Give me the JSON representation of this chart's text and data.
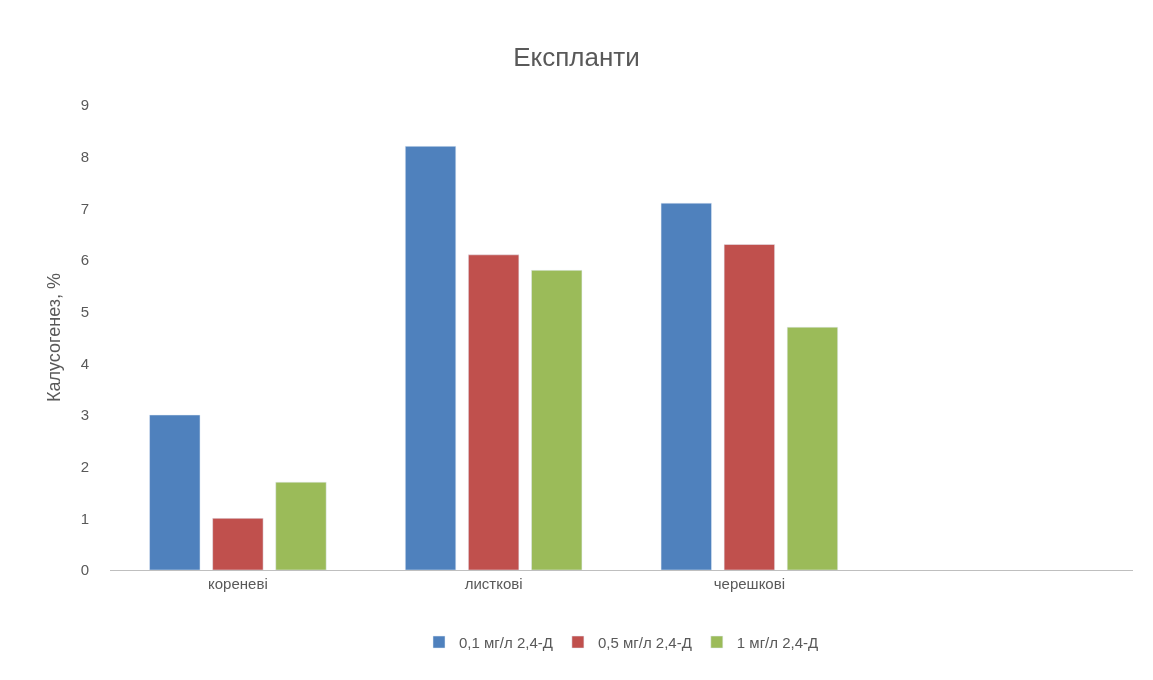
{
  "chart_data": {
    "type": "bar",
    "title": "Експланти",
    "ylabel": "Калусогенез, %",
    "categories": [
      "кореневі",
      "листкові",
      "черешкові",
      null
    ],
    "series": [
      {
        "name": "0,1 мг/л 2,4-Д",
        "color": "#4f81bd",
        "values": [
          3.0,
          8.2,
          7.1,
          null
        ]
      },
      {
        "name": "0,5 мг/л 2,4-Д",
        "color": "#c0504d",
        "values": [
          1.0,
          6.1,
          6.3,
          null
        ]
      },
      {
        "name": "1 мг/л 2,4-Д",
        "color": "#9bbb59",
        "values": [
          1.7,
          5.8,
          4.7,
          null
        ]
      }
    ],
    "ylim": [
      0,
      9
    ],
    "yticks": [
      0,
      1,
      2,
      3,
      4,
      5,
      6,
      7,
      8,
      9
    ],
    "grid": false,
    "legend": "bottom"
  }
}
